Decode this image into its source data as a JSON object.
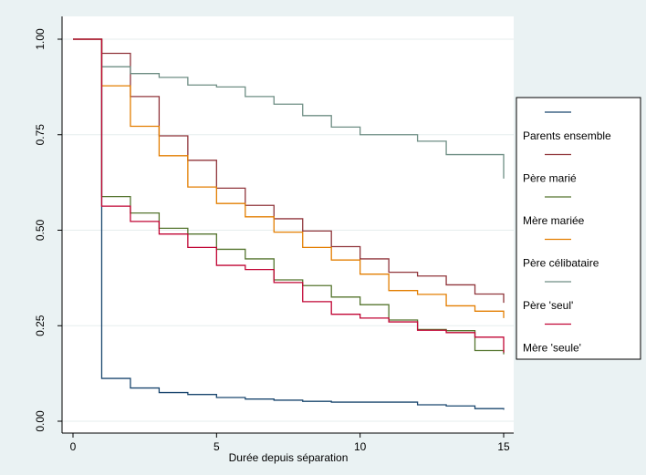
{
  "chart_data": {
    "type": "line",
    "step": true,
    "title": "",
    "xlabel": "Durée depuis séparation",
    "ylabel": "",
    "xlim": [
      0,
      15
    ],
    "ylim": [
      0,
      1
    ],
    "x_ticks": [
      0,
      5,
      10,
      15
    ],
    "x_tick_labels": [
      "0",
      "5",
      "10",
      "15"
    ],
    "y_ticks": [
      0,
      0.25,
      0.5,
      0.75,
      1
    ],
    "y_tick_labels": [
      "0.00",
      "0.25",
      "0.50",
      "0.75",
      "1.00"
    ],
    "grid": true,
    "legend_position": "right",
    "x": [
      0,
      1,
      2,
      3,
      4,
      5,
      6,
      7,
      8,
      9,
      10,
      11,
      12,
      13,
      14,
      15
    ],
    "series": [
      {
        "name": "Parents ensemble",
        "color": "#1a476f",
        "values": [
          1.0,
          0.112,
          0.087,
          0.075,
          0.07,
          0.062,
          0.058,
          0.055,
          0.052,
          0.05,
          0.05,
          0.05,
          0.043,
          0.04,
          0.033,
          0.03
        ]
      },
      {
        "name": "Père marié",
        "color": "#90353b",
        "values": [
          1.0,
          0.963,
          0.85,
          0.747,
          0.683,
          0.61,
          0.565,
          0.53,
          0.498,
          0.457,
          0.425,
          0.39,
          0.38,
          0.357,
          0.333,
          0.31
        ]
      },
      {
        "name": "Mère mariée",
        "color": "#55752f",
        "values": [
          1.0,
          0.588,
          0.545,
          0.505,
          0.49,
          0.45,
          0.425,
          0.37,
          0.355,
          0.325,
          0.305,
          0.265,
          0.24,
          0.237,
          0.185,
          0.175
        ]
      },
      {
        "name": "Père célibataire",
        "color": "#e37e00",
        "values": [
          1.0,
          0.878,
          0.772,
          0.695,
          0.613,
          0.57,
          0.535,
          0.495,
          0.455,
          0.422,
          0.385,
          0.342,
          0.332,
          0.302,
          0.288,
          0.27
        ]
      },
      {
        "name": "Père 'seul'",
        "color": "#6e8e84",
        "values": [
          1.0,
          0.928,
          0.91,
          0.9,
          0.88,
          0.875,
          0.85,
          0.83,
          0.8,
          0.77,
          0.75,
          0.75,
          0.733,
          0.698,
          0.698,
          0.635
        ]
      },
      {
        "name": "Mère 'seule'",
        "color": "#c10534",
        "values": [
          1.0,
          0.563,
          0.523,
          0.49,
          0.455,
          0.408,
          0.397,
          0.363,
          0.313,
          0.28,
          0.27,
          0.26,
          0.238,
          0.232,
          0.22,
          0.18
        ]
      }
    ]
  }
}
